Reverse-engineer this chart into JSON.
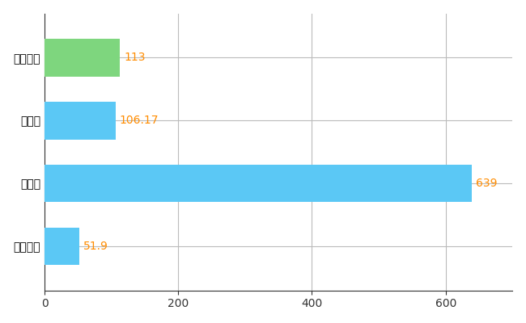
{
  "categories": [
    "東住吉区",
    "県平均",
    "県最大",
    "全国平均"
  ],
  "values": [
    113,
    106.17,
    639,
    51.9
  ],
  "bar_colors": [
    "#7ED67E",
    "#5BC8F5",
    "#5BC8F5",
    "#5BC8F5"
  ],
  "value_labels": [
    "113",
    "106.17",
    "639",
    "51.9"
  ],
  "value_label_color": "#FF8C00",
  "xlim": [
    0,
    700
  ],
  "xticks": [
    0,
    200,
    400,
    600
  ],
  "background_color": "#ffffff",
  "grid_color": "#bbbbbb",
  "bar_height": 0.6,
  "label_fontsize": 10,
  "tick_fontsize": 10,
  "figsize": [
    6.5,
    4.0
  ],
  "dpi": 100
}
